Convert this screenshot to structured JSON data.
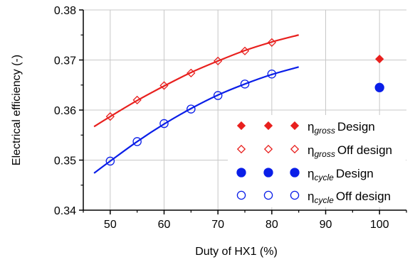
{
  "chart_data": {
    "type": "scatter",
    "xlabel": "Duty of HX1 (%)",
    "ylabel": "Electrical efficiency (-)",
    "xlim": [
      45,
      105
    ],
    "ylim": [
      0.34,
      0.38
    ],
    "x_ticks": [
      50,
      60,
      70,
      80,
      90,
      100
    ],
    "y_ticks": [
      0.34,
      0.35,
      0.36,
      0.37,
      0.38
    ],
    "x_tick_labels": [
      "50",
      "60",
      "70",
      "80",
      "90",
      "100"
    ],
    "y_tick_labels": [
      "0.34",
      "0.35",
      "0.36",
      "0.37",
      "0.38"
    ],
    "grid": true,
    "legend_position": "bottom-right",
    "series": [
      {
        "name": "η gross Design",
        "symbol": "η",
        "subscript": "gross",
        "suffix": "Design",
        "marker": "diamond-filled",
        "color": "#e8201e",
        "x": [
          100
        ],
        "y": [
          0.3702
        ]
      },
      {
        "name": "η gross Off design",
        "symbol": "η",
        "subscript": "gross",
        "suffix": "Off design",
        "marker": "diamond-open",
        "color": "#e8201e",
        "x": [
          50,
          55,
          60,
          65,
          70,
          75,
          80
        ],
        "y": [
          0.3587,
          0.362,
          0.3649,
          0.3674,
          0.3698,
          0.3718,
          0.3735
        ]
      },
      {
        "name": "η cycle Design",
        "symbol": "η",
        "subscript": "cycle",
        "suffix": "Design",
        "marker": "circle-filled",
        "color": "#0a1ee8",
        "x": [
          100
        ],
        "y": [
          0.3645
        ]
      },
      {
        "name": "η cycle Off design",
        "symbol": "η",
        "subscript": "cycle",
        "suffix": "Off design",
        "marker": "circle-open",
        "color": "#0a1ee8",
        "x": [
          50,
          55,
          60,
          65,
          70,
          75,
          80
        ],
        "y": [
          0.3498,
          0.3537,
          0.3573,
          0.3602,
          0.3629,
          0.3652,
          0.3672
        ]
      }
    ],
    "fit_lines": [
      {
        "color": "#e8201e",
        "x": [
          47,
          50,
          55,
          60,
          65,
          70,
          75,
          80,
          85
        ],
        "y": [
          0.3567,
          0.3587,
          0.3619,
          0.3648,
          0.3675,
          0.3698,
          0.3719,
          0.3736,
          0.375
        ]
      },
      {
        "color": "#0a1ee8",
        "x": [
          47,
          50,
          55,
          60,
          65,
          70,
          75,
          80,
          85
        ],
        "y": [
          0.3474,
          0.3498,
          0.3537,
          0.3572,
          0.3603,
          0.363,
          0.3652,
          0.3671,
          0.3686
        ]
      }
    ]
  }
}
